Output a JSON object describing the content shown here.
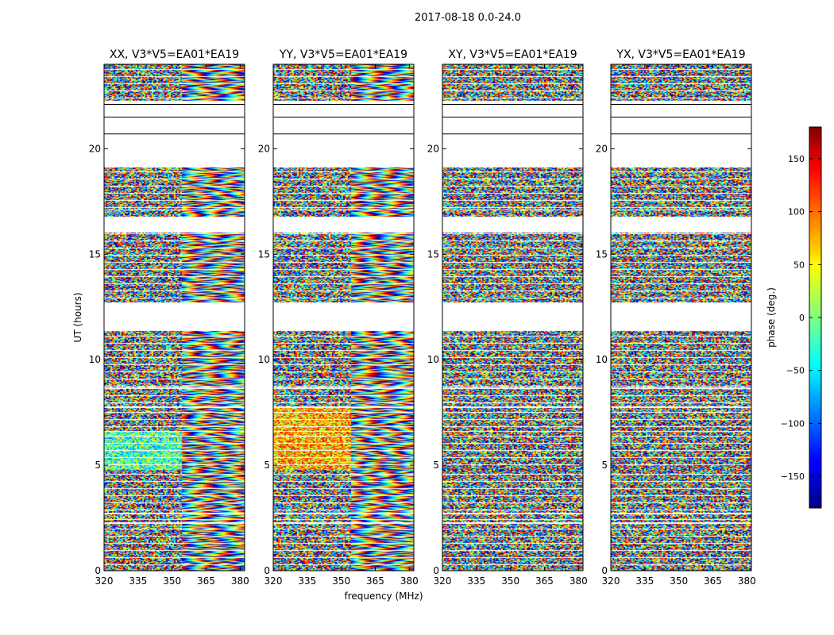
{
  "suptitle": "2017-08-18 0.0-24.0",
  "chart_data": {
    "type": "heatmap",
    "title": "2017-08-18 0.0-24.0",
    "xlabel": "frequency (MHz)",
    "ylabel": "UT (hours)",
    "xlim": [
      320,
      382
    ],
    "ylim": [
      0,
      24
    ],
    "xticks": [
      "320",
      "335",
      "350",
      "365",
      "380"
    ],
    "yticks": [
      "0",
      "5",
      "10",
      "15",
      "20"
    ],
    "colorbar": {
      "label": "phase (deg.)",
      "range": [
        -180,
        180
      ],
      "colormap": "jet",
      "ticks": [
        "−150",
        "−100",
        "−50",
        "0",
        "50",
        "100",
        "150"
      ]
    },
    "panels": [
      {
        "title": "XX, V3*V5=EA01*EA19",
        "polarization": "XX"
      },
      {
        "title": "YY, V3*V5=EA01*EA19",
        "polarization": "YY"
      },
      {
        "title": "XY, V3*V5=EA01*EA19",
        "polarization": "XY"
      },
      {
        "title": "YX, V3*V5=EA01*EA19",
        "polarization": "YX"
      }
    ],
    "data_bands_hours": [
      [
        0.0,
        2.2
      ],
      [
        2.3,
        2.65
      ],
      [
        2.75,
        4.75
      ],
      [
        4.8,
        6.55
      ],
      [
        6.65,
        7.7
      ],
      [
        7.8,
        8.6
      ],
      [
        8.7,
        11.35
      ],
      [
        12.75,
        16.0
      ],
      [
        16.8,
        17.05
      ],
      [
        17.15,
        19.1
      ],
      [
        22.3,
        24.0
      ]
    ],
    "empty_row_lines_hours": [
      21.5,
      20.7,
      22.1
    ]
  }
}
